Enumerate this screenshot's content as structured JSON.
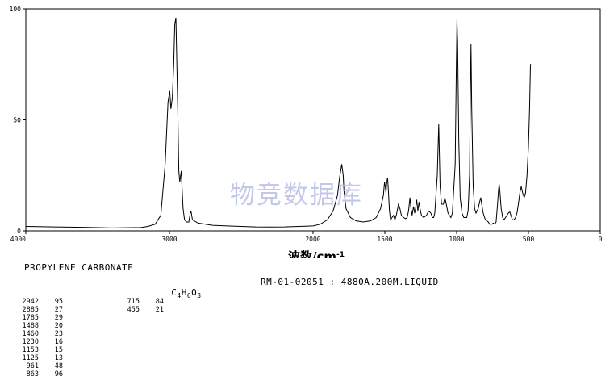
{
  "chart_data": {
    "type": "line",
    "xlabel": "波数/cm",
    "xlabel_sup": "-1",
    "xlim": [
      4000,
      0
    ],
    "ylim": [
      0,
      100
    ],
    "x_ticks": [
      4000,
      3000,
      2000,
      1500,
      1000,
      500,
      0
    ],
    "y_ticks": [
      0,
      50,
      100
    ],
    "grid": false,
    "series": [
      {
        "points": [
          [
            4000,
            2
          ],
          [
            3800,
            1.8
          ],
          [
            3600,
            1.6
          ],
          [
            3400,
            1.3
          ],
          [
            3200,
            1.5
          ],
          [
            3150,
            2
          ],
          [
            3100,
            3
          ],
          [
            3060,
            7
          ],
          [
            3030,
            30
          ],
          [
            3010,
            58
          ],
          [
            2998,
            63
          ],
          [
            2990,
            55
          ],
          [
            2980,
            60
          ],
          [
            2970,
            75
          ],
          [
            2963,
            93
          ],
          [
            2955,
            96
          ],
          [
            2950,
            80
          ],
          [
            2942,
            55
          ],
          [
            2935,
            27
          ],
          [
            2928,
            22
          ],
          [
            2918,
            27
          ],
          [
            2905,
            10
          ],
          [
            2895,
            5
          ],
          [
            2880,
            4
          ],
          [
            2865,
            4
          ],
          [
            2855,
            8
          ],
          [
            2850,
            9
          ],
          [
            2840,
            5
          ],
          [
            2800,
            3.5
          ],
          [
            2750,
            3
          ],
          [
            2700,
            2.5
          ],
          [
            2600,
            2.2
          ],
          [
            2500,
            2
          ],
          [
            2400,
            1.8
          ],
          [
            2300,
            1.7
          ],
          [
            2200,
            1.8
          ],
          [
            2100,
            2
          ],
          [
            2000,
            2.2
          ],
          [
            1950,
            3
          ],
          [
            1900,
            5
          ],
          [
            1860,
            9
          ],
          [
            1830,
            16
          ],
          [
            1815,
            24
          ],
          [
            1800,
            30
          ],
          [
            1790,
            25
          ],
          [
            1785,
            18
          ],
          [
            1770,
            10
          ],
          [
            1740,
            6
          ],
          [
            1700,
            4.5
          ],
          [
            1650,
            4
          ],
          [
            1600,
            4.5
          ],
          [
            1560,
            6
          ],
          [
            1530,
            10
          ],
          [
            1510,
            16
          ],
          [
            1502,
            22
          ],
          [
            1497,
            20
          ],
          [
            1492,
            17
          ],
          [
            1488,
            21
          ],
          [
            1481,
            24
          ],
          [
            1475,
            18
          ],
          [
            1468,
            9
          ],
          [
            1460,
            5
          ],
          [
            1450,
            6
          ],
          [
            1440,
            7
          ],
          [
            1430,
            5
          ],
          [
            1420,
            7
          ],
          [
            1405,
            12
          ],
          [
            1395,
            10
          ],
          [
            1385,
            7
          ],
          [
            1370,
            6
          ],
          [
            1355,
            5.5
          ],
          [
            1345,
            6
          ],
          [
            1335,
            9
          ],
          [
            1325,
            15
          ],
          [
            1318,
            10
          ],
          [
            1310,
            7
          ],
          [
            1300,
            11
          ],
          [
            1292,
            8
          ],
          [
            1286,
            10
          ],
          [
            1278,
            14
          ],
          [
            1270,
            9
          ],
          [
            1262,
            13
          ],
          [
            1255,
            10
          ],
          [
            1245,
            7
          ],
          [
            1230,
            6
          ],
          [
            1210,
            7
          ],
          [
            1195,
            9
          ],
          [
            1180,
            8
          ],
          [
            1168,
            6
          ],
          [
            1160,
            6
          ],
          [
            1152,
            8
          ],
          [
            1135,
            25
          ],
          [
            1125,
            48
          ],
          [
            1115,
            20
          ],
          [
            1105,
            12
          ],
          [
            1092,
            12
          ],
          [
            1082,
            15
          ],
          [
            1072,
            12
          ],
          [
            1060,
            8
          ],
          [
            1040,
            6
          ],
          [
            1030,
            8
          ],
          [
            1010,
            30
          ],
          [
            1003,
            70
          ],
          [
            998,
            95
          ],
          [
            993,
            85
          ],
          [
            985,
            40
          ],
          [
            975,
            15
          ],
          [
            963,
            8
          ],
          [
            950,
            6
          ],
          [
            930,
            6
          ],
          [
            920,
            9
          ],
          [
            910,
            25
          ],
          [
            904,
            65
          ],
          [
            900,
            84
          ],
          [
            895,
            55
          ],
          [
            885,
            20
          ],
          [
            875,
            10
          ],
          [
            865,
            8
          ],
          [
            850,
            10
          ],
          [
            840,
            13
          ],
          [
            832,
            15
          ],
          [
            825,
            12
          ],
          [
            815,
            8
          ],
          [
            800,
            5
          ],
          [
            780,
            4
          ],
          [
            770,
            3
          ],
          [
            755,
            3
          ],
          [
            745,
            3.5
          ],
          [
            735,
            3
          ],
          [
            725,
            4
          ],
          [
            715,
            12
          ],
          [
            709,
            18
          ],
          [
            704,
            21
          ],
          [
            699,
            18
          ],
          [
            690,
            10
          ],
          [
            680,
            6
          ],
          [
            670,
            5
          ],
          [
            660,
            6
          ],
          [
            650,
            7
          ],
          [
            640,
            8
          ],
          [
            630,
            8.5
          ],
          [
            622,
            7
          ],
          [
            612,
            5
          ],
          [
            600,
            5
          ],
          [
            590,
            6
          ],
          [
            580,
            8
          ],
          [
            570,
            12
          ],
          [
            560,
            17
          ],
          [
            550,
            20
          ],
          [
            540,
            17
          ],
          [
            530,
            15
          ],
          [
            520,
            17
          ],
          [
            510,
            25
          ],
          [
            500,
            38
          ],
          [
            492,
            55
          ],
          [
            486,
            75
          ],
          [
            482,
            75
          ]
        ]
      }
    ],
    "peak_table": {
      "col1": [
        [
          "2942",
          "95"
        ],
        [
          "2885",
          "27"
        ],
        [
          "1785",
          "29"
        ],
        [
          "1488",
          "20"
        ],
        [
          "1460",
          "23"
        ],
        [
          "1230",
          "16"
        ],
        [
          "1153",
          "15"
        ],
        [
          "1125",
          "13"
        ],
        [
          "961",
          "48"
        ],
        [
          "863",
          "96"
        ]
      ],
      "col2": [
        [
          "715",
          "84"
        ],
        [
          "455",
          "21"
        ]
      ]
    }
  },
  "compound": {
    "name": "PROPYLENE CARBONATE",
    "formula_parts": [
      "C",
      "4",
      "H",
      "6",
      "O",
      "3"
    ]
  },
  "sample": {
    "text": "RM-01-02051 : 4880A.200M.LIQUID"
  },
  "watermark": "物竞数据库"
}
